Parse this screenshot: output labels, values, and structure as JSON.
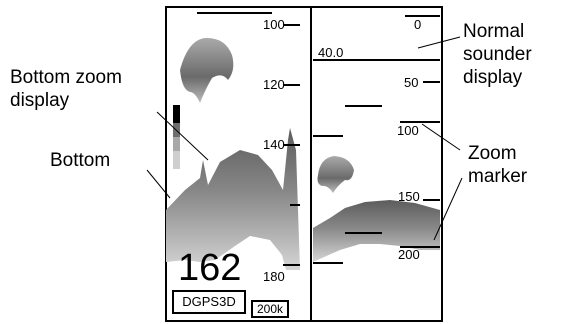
{
  "callouts": {
    "bottom_zoom": "Bottom zoom\ndisplay",
    "bottom": "Bottom",
    "normal_sounder": "Normal\nsounder\ndisplay",
    "zoom_marker": "Zoom\nmarker"
  },
  "left_panel": {
    "depth_labels": [
      "100",
      "120",
      "140",
      "180"
    ],
    "current_depth": "162",
    "position_source": "DGPS3D",
    "frequency": "200k"
  },
  "right_panel": {
    "range_labels": [
      "0",
      "50",
      "100",
      "150",
      "200"
    ],
    "range_value": "40.0"
  },
  "colors": {
    "echo_dark": "#555555",
    "echo_mid": "#8a8a8a",
    "echo_light": "#bdbdbd",
    "color_bar": [
      "#000000",
      "#6e6e6e",
      "#a9a9a9",
      "#cfcfcf"
    ]
  }
}
